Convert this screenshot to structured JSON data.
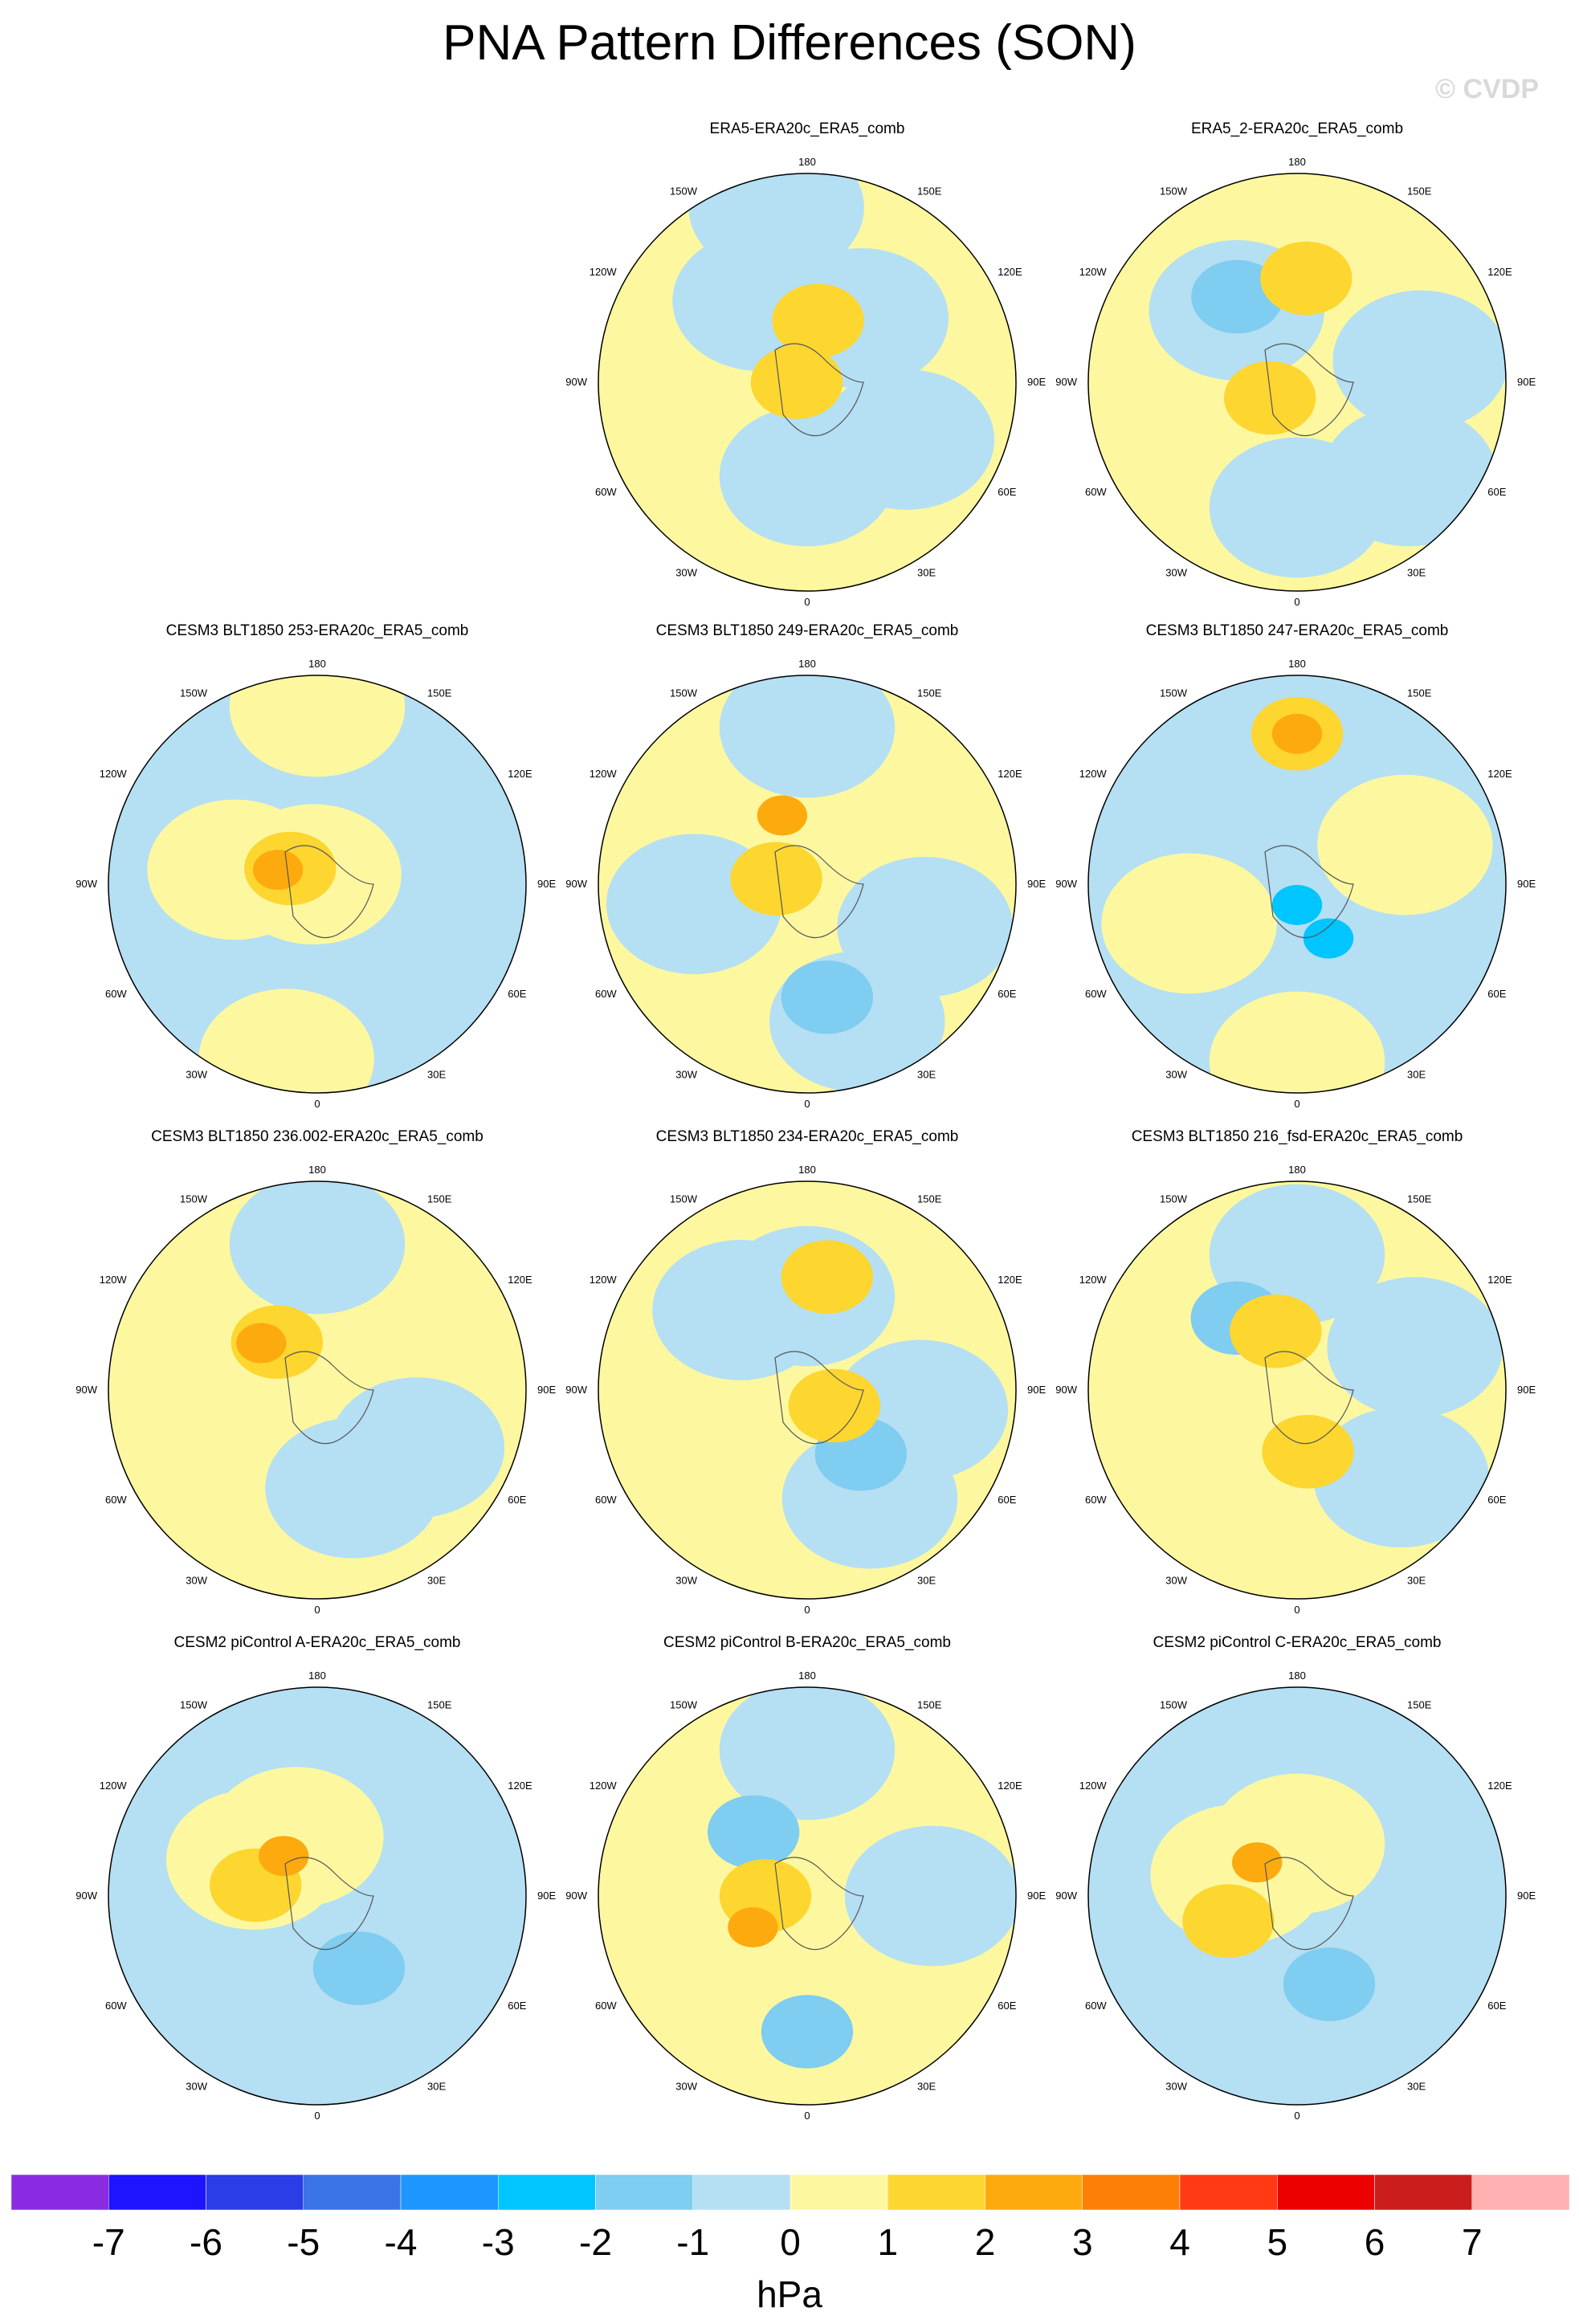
{
  "title": "PNA Pattern Differences (SON)",
  "watermark": "© CVDP",
  "chart_data": {
    "type": "heatmap",
    "projection": "north polar stereographic",
    "season": "SON",
    "units": "hPa",
    "lon_labels": [
      "180",
      "150E",
      "120E",
      "90E",
      "60E",
      "30E",
      "0",
      "30W",
      "60W",
      "90W",
      "120W",
      "150W"
    ],
    "colorbar": {
      "levels": [
        -7,
        -6,
        -5,
        -4,
        -3,
        -2,
        -1,
        0,
        1,
        2,
        3,
        4,
        5,
        6,
        7
      ],
      "colors": [
        "#8a2be2",
        "#1e14ff",
        "#2a3de6",
        "#3b73e8",
        "#1e96ff",
        "#00c5ff",
        "#7fcdf0",
        "#b5dff3",
        "#fdf8a0",
        "#fdd630",
        "#fdaa0f",
        "#fd7f08",
        "#ff3a14",
        "#ec0000",
        "#cc1d1d",
        "#ffb0b0"
      ],
      "unit_label": "hPa"
    },
    "panels": [
      {
        "title": "ERA5-ERA20c_ERA5_comb",
        "background": "yellow",
        "blobs": [
          {
            "lon": 0,
            "r": 0.45,
            "v": -0.5
          },
          {
            "lon": 60,
            "r": 0.55,
            "v": -0.5
          },
          {
            "lon": 140,
            "r": 0.4,
            "v": -0.5
          },
          {
            "lon": 190,
            "r": 0.85,
            "v": -0.5
          },
          {
            "lon": 210,
            "r": 0.45,
            "v": -0.5
          },
          {
            "lon": 170,
            "r": 0.3,
            "v": 1.5
          },
          {
            "lon": 270,
            "r": 0.05,
            "v": 1.5
          }
        ]
      },
      {
        "title": "ERA5_2-ERA20c_ERA5_comb",
        "background": "yellow",
        "blobs": [
          {
            "lon": 0,
            "r": 0.6,
            "v": -0.5
          },
          {
            "lon": 50,
            "r": 0.7,
            "v": -0.5
          },
          {
            "lon": 100,
            "r": 0.6,
            "v": -0.5
          },
          {
            "lon": 220,
            "r": 0.45,
            "v": -0.5
          },
          {
            "lon": 215,
            "r": 0.5,
            "v": -1.5
          },
          {
            "lon": 300,
            "r": 0.15,
            "v": 1.5
          },
          {
            "lon": 175,
            "r": 0.5,
            "v": 1.5
          }
        ]
      },
      {
        "title": "CESM3 BLT1850 253-ERA20c_ERA5_comb",
        "background": "blue",
        "blobs": [
          {
            "lon": 200,
            "r": 0.05,
            "v": 0.5
          },
          {
            "lon": 180,
            "r": 0.85,
            "v": 0.5
          },
          {
            "lon": 260,
            "r": 0.4,
            "v": 0.5
          },
          {
            "lon": 350,
            "r": 0.85,
            "v": 0.5
          },
          {
            "lon": 240,
            "r": 0.15,
            "v": 1.5
          },
          {
            "lon": 250,
            "r": 0.2,
            "v": 2.5
          }
        ]
      },
      {
        "title": "CESM3 BLT1850 249-ERA20c_ERA5_comb",
        "background": "yellow",
        "blobs": [
          {
            "lon": 180,
            "r": 0.75,
            "v": -0.5
          },
          {
            "lon": 70,
            "r": 0.6,
            "v": -0.5
          },
          {
            "lon": 20,
            "r": 0.7,
            "v": -0.5
          },
          {
            "lon": 280,
            "r": 0.55,
            "v": -0.5
          },
          {
            "lon": 260,
            "r": 0.15,
            "v": 1.5
          },
          {
            "lon": 200,
            "r": 0.35,
            "v": 2.5
          },
          {
            "lon": 10,
            "r": 0.55,
            "v": -1.5
          }
        ]
      },
      {
        "title": "CESM3 BLT1850 247-ERA20c_ERA5_comb",
        "background": "blue",
        "blobs": [
          {
            "lon": 180,
            "r": 0.72,
            "v": 1.5
          },
          {
            "lon": 180,
            "r": 0.72,
            "v": 2.5
          },
          {
            "lon": 110,
            "r": 0.55,
            "v": 0.5
          },
          {
            "lon": 290,
            "r": 0.55,
            "v": 0.5
          },
          {
            "lon": 0,
            "r": 0.85,
            "v": 0.5
          },
          {
            "lon": 0,
            "r": 0.1,
            "v": -2.5
          },
          {
            "lon": 30,
            "r": 0.3,
            "v": -2.0
          }
        ]
      },
      {
        "title": "CESM3 BLT1850 236.002-ERA20c_ERA5_comb",
        "background": "yellow",
        "blobs": [
          {
            "lon": 180,
            "r": 0.7,
            "v": -0.5
          },
          {
            "lon": 60,
            "r": 0.55,
            "v": -0.5
          },
          {
            "lon": 20,
            "r": 0.5,
            "v": -0.5
          },
          {
            "lon": 220,
            "r": 0.3,
            "v": 1.5
          },
          {
            "lon": 230,
            "r": 0.35,
            "v": 2.5
          }
        ]
      },
      {
        "title": "CESM3 BLT1850 234-ERA20c_ERA5_comb",
        "background": "yellow",
        "blobs": [
          {
            "lon": 180,
            "r": 0.45,
            "v": -0.5
          },
          {
            "lon": 220,
            "r": 0.5,
            "v": -0.5
          },
          {
            "lon": 80,
            "r": 0.55,
            "v": -0.5
          },
          {
            "lon": 30,
            "r": 0.6,
            "v": -0.5
          },
          {
            "lon": 40,
            "r": 0.4,
            "v": -1.5
          },
          {
            "lon": 170,
            "r": 0.55,
            "v": 1.5
          },
          {
            "lon": 60,
            "r": 0.15,
            "v": 1.5
          }
        ]
      },
      {
        "title": "CESM3 BLT1850 216_fsd-ERA20c_ERA5_comb",
        "background": "yellow",
        "blobs": [
          {
            "lon": 180,
            "r": 0.65,
            "v": -0.5
          },
          {
            "lon": 50,
            "r": 0.65,
            "v": -0.5
          },
          {
            "lon": 110,
            "r": 0.6,
            "v": -0.5
          },
          {
            "lon": 220,
            "r": 0.45,
            "v": -1.5
          },
          {
            "lon": 200,
            "r": 0.3,
            "v": 1.5
          },
          {
            "lon": 10,
            "r": 0.3,
            "v": 1.5
          }
        ]
      },
      {
        "title": "CESM2 piControl A-ERA20c_ERA5_comb",
        "background": "blue",
        "blobs": [
          {
            "lon": 200,
            "r": 0.3,
            "v": 0.5
          },
          {
            "lon": 240,
            "r": 0.35,
            "v": 0.5
          },
          {
            "lon": 260,
            "r": 0.3,
            "v": 1.5
          },
          {
            "lon": 220,
            "r": 0.25,
            "v": 2.5
          },
          {
            "lon": 30,
            "r": 0.4,
            "v": -1.5
          }
        ]
      },
      {
        "title": "CESM2 piControl B-ERA20c_ERA5_comb",
        "background": "yellow",
        "blobs": [
          {
            "lon": 180,
            "r": 0.7,
            "v": -0.5
          },
          {
            "lon": 90,
            "r": 0.6,
            "v": -0.5
          },
          {
            "lon": 0,
            "r": 0.65,
            "v": -1.5
          },
          {
            "lon": 220,
            "r": 0.4,
            "v": -1.5
          },
          {
            "lon": 270,
            "r": 0.2,
            "v": 1.5
          },
          {
            "lon": 300,
            "r": 0.3,
            "v": 2.5
          }
        ]
      },
      {
        "title": "CESM2 piControl C-ERA20c_ERA5_comb",
        "background": "blue",
        "blobs": [
          {
            "lon": 180,
            "r": 0.25,
            "v": 0.5
          },
          {
            "lon": 250,
            "r": 0.3,
            "v": 0.5
          },
          {
            "lon": 290,
            "r": 0.35,
            "v": 1.5
          },
          {
            "lon": 230,
            "r": 0.25,
            "v": 2.5
          },
          {
            "lon": 20,
            "r": 0.45,
            "v": -1.5
          }
        ]
      }
    ]
  }
}
